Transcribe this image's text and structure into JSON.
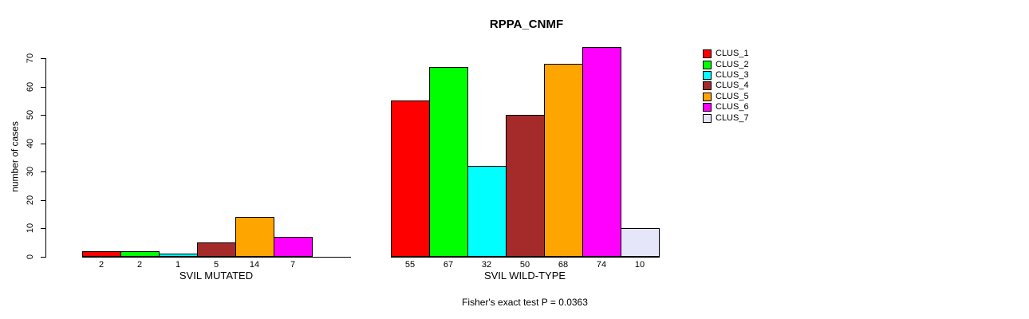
{
  "chart_data": {
    "type": "bar",
    "title": "RPPA_CNMF",
    "ylabel": "number of cases",
    "xlabel": "",
    "ylim": [
      0,
      70
    ],
    "yticks": [
      0,
      10,
      20,
      30,
      40,
      50,
      60,
      70
    ],
    "grid": false,
    "legend_position": "right",
    "annotation": "Fisher's exact test P = 0.0363",
    "background_color": "#FFFFFF",
    "axis_color": "#000000",
    "clusters": [
      {
        "name": "CLUS_1",
        "color": "#FF0000"
      },
      {
        "name": "CLUS_2",
        "color": "#00FF00"
      },
      {
        "name": "CLUS_3",
        "color": "#00FFFF"
      },
      {
        "name": "CLUS_4",
        "color": "#A52A2A"
      },
      {
        "name": "CLUS_5",
        "color": "#FFA500"
      },
      {
        "name": "CLUS_6",
        "color": "#FF00FF"
      },
      {
        "name": "CLUS_7",
        "color": "#E6E6FA"
      }
    ],
    "groups": [
      {
        "label": "SVIL MUTATED",
        "values": [
          2,
          2,
          1,
          5,
          14,
          7,
          0
        ],
        "value_labels": [
          "2",
          "2",
          "1",
          "5",
          "14",
          "7",
          ""
        ]
      },
      {
        "label": "SVIL WILD-TYPE",
        "values": [
          55,
          67,
          32,
          50,
          68,
          74,
          10
        ],
        "value_labels": [
          "55",
          "67",
          "32",
          "50",
          "68",
          "74",
          "10"
        ]
      }
    ]
  }
}
